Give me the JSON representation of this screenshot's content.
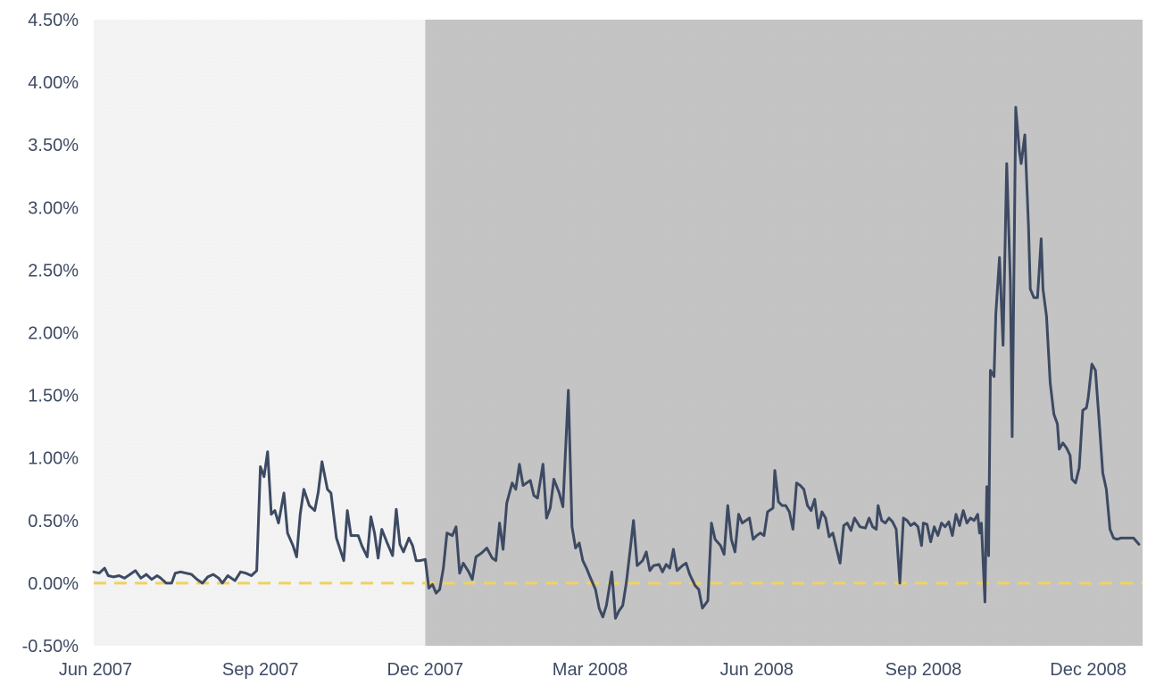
{
  "chart_data": {
    "type": "line",
    "title": "",
    "xlabel": "",
    "ylabel": "",
    "ylim": [
      -0.5,
      4.5
    ],
    "y_unit": "%",
    "y_ticks": [
      "4.50%",
      "4.00%",
      "3.50%",
      "3.00%",
      "2.50%",
      "2.00%",
      "1.50%",
      "1.00%",
      "0.50%",
      "0.00%",
      "-0.50%"
    ],
    "x_ticks": [
      {
        "label": "Jun 2007",
        "date": "2007-06-01"
      },
      {
        "label": "Sep 2007",
        "date": "2007-09-01"
      },
      {
        "label": "Dec 2007",
        "date": "2007-12-01"
      },
      {
        "label": "Mar 2008",
        "date": "2008-03-01"
      },
      {
        "label": "Jun 2008",
        "date": "2008-06-01"
      },
      {
        "label": "Sep 2008",
        "date": "2008-09-01"
      },
      {
        "label": "Dec 2008",
        "date": "2008-12-01"
      }
    ],
    "xlim": [
      "2007-06-01",
      "2008-12-31"
    ],
    "grid": false,
    "legend": "none",
    "shaded_regions": [
      {
        "start": "2007-06-01",
        "end": "2007-12-01",
        "color": "#f0f0f0"
      },
      {
        "start": "2007-12-01",
        "end": "2008-12-31",
        "color": "#c4c4c4"
      }
    ],
    "reference_line": {
      "y": 0.0,
      "style": "dashed",
      "color": "#f2d25c"
    },
    "series": [
      {
        "color": "#3d4a63",
        "points": [
          [
            "2007-06-01",
            0.09
          ],
          [
            "2007-06-04",
            0.08
          ],
          [
            "2007-06-07",
            0.12
          ],
          [
            "2007-06-09",
            0.06
          ],
          [
            "2007-06-12",
            0.05
          ],
          [
            "2007-06-15",
            0.06
          ],
          [
            "2007-06-18",
            0.04
          ],
          [
            "2007-06-21",
            0.07
          ],
          [
            "2007-06-24",
            0.1
          ],
          [
            "2007-06-27",
            0.04
          ],
          [
            "2007-06-30",
            0.07
          ],
          [
            "2007-07-03",
            0.03
          ],
          [
            "2007-07-06",
            0.06
          ],
          [
            "2007-07-08",
            0.04
          ],
          [
            "2007-07-11",
            0.0
          ],
          [
            "2007-07-14",
            0.0
          ],
          [
            "2007-07-16",
            0.08
          ],
          [
            "2007-07-19",
            0.09
          ],
          [
            "2007-07-22",
            0.08
          ],
          [
            "2007-07-25",
            0.07
          ],
          [
            "2007-07-28",
            0.03
          ],
          [
            "2007-07-31",
            0.0
          ],
          [
            "2007-08-03",
            0.05
          ],
          [
            "2007-08-06",
            0.07
          ],
          [
            "2007-08-09",
            0.04
          ],
          [
            "2007-08-11",
            0.0
          ],
          [
            "2007-08-14",
            0.06
          ],
          [
            "2007-08-16",
            0.04
          ],
          [
            "2007-08-18",
            0.02
          ],
          [
            "2007-08-21",
            0.09
          ],
          [
            "2007-08-24",
            0.08
          ],
          [
            "2007-08-27",
            0.06
          ],
          [
            "2007-08-30",
            0.1
          ],
          [
            "2007-09-01",
            0.93
          ],
          [
            "2007-09-03",
            0.85
          ],
          [
            "2007-09-05",
            1.05
          ],
          [
            "2007-09-07",
            0.55
          ],
          [
            "2007-09-09",
            0.58
          ],
          [
            "2007-09-11",
            0.48
          ],
          [
            "2007-09-14",
            0.72
          ],
          [
            "2007-09-16",
            0.4
          ],
          [
            "2007-09-19",
            0.3
          ],
          [
            "2007-09-21",
            0.21
          ],
          [
            "2007-09-23",
            0.55
          ],
          [
            "2007-09-25",
            0.75
          ],
          [
            "2007-09-28",
            0.62
          ],
          [
            "2007-10-01",
            0.58
          ],
          [
            "2007-10-03",
            0.73
          ],
          [
            "2007-10-05",
            0.97
          ],
          [
            "2007-10-08",
            0.75
          ],
          [
            "2007-10-10",
            0.72
          ],
          [
            "2007-10-13",
            0.36
          ],
          [
            "2007-10-15",
            0.27
          ],
          [
            "2007-10-17",
            0.18
          ],
          [
            "2007-10-19",
            0.58
          ],
          [
            "2007-10-21",
            0.38
          ],
          [
            "2007-10-25",
            0.38
          ],
          [
            "2007-10-27",
            0.3
          ],
          [
            "2007-10-30",
            0.21
          ],
          [
            "2007-11-01",
            0.53
          ],
          [
            "2007-11-03",
            0.4
          ],
          [
            "2007-11-05",
            0.2
          ],
          [
            "2007-11-07",
            0.43
          ],
          [
            "2007-11-10",
            0.32
          ],
          [
            "2007-11-13",
            0.22
          ],
          [
            "2007-11-15",
            0.59
          ],
          [
            "2007-11-17",
            0.31
          ],
          [
            "2007-11-19",
            0.25
          ],
          [
            "2007-11-22",
            0.36
          ],
          [
            "2007-11-24",
            0.3
          ],
          [
            "2007-11-26",
            0.18
          ],
          [
            "2007-11-28",
            0.18
          ],
          [
            "2007-12-01",
            0.19
          ],
          [
            "2007-12-03",
            -0.04
          ],
          [
            "2007-12-05",
            -0.01
          ],
          [
            "2007-12-07",
            -0.08
          ],
          [
            "2007-12-09",
            -0.05
          ],
          [
            "2007-12-11",
            0.12
          ],
          [
            "2007-12-13",
            0.4
          ],
          [
            "2007-12-16",
            0.38
          ],
          [
            "2007-12-18",
            0.45
          ],
          [
            "2007-12-20",
            0.08
          ],
          [
            "2007-12-22",
            0.16
          ],
          [
            "2007-12-25",
            0.09
          ],
          [
            "2007-12-27",
            0.03
          ],
          [
            "2007-12-29",
            0.21
          ],
          [
            "2008-01-01",
            0.24
          ],
          [
            "2008-01-04",
            0.28
          ],
          [
            "2008-01-07",
            0.2
          ],
          [
            "2008-01-09",
            0.18
          ],
          [
            "2008-01-11",
            0.48
          ],
          [
            "2008-01-13",
            0.27
          ],
          [
            "2008-01-15",
            0.64
          ],
          [
            "2008-01-18",
            0.8
          ],
          [
            "2008-01-20",
            0.75
          ],
          [
            "2008-01-22",
            0.95
          ],
          [
            "2008-01-24",
            0.78
          ],
          [
            "2008-01-26",
            0.8
          ],
          [
            "2008-01-28",
            0.82
          ],
          [
            "2008-01-30",
            0.7
          ],
          [
            "2008-02-01",
            0.68
          ],
          [
            "2008-02-04",
            0.95
          ],
          [
            "2008-02-06",
            0.52
          ],
          [
            "2008-02-08",
            0.6
          ],
          [
            "2008-02-10",
            0.83
          ],
          [
            "2008-02-13",
            0.72
          ],
          [
            "2008-02-15",
            0.61
          ],
          [
            "2008-02-18",
            1.54
          ],
          [
            "2008-02-20",
            0.45
          ],
          [
            "2008-02-22",
            0.28
          ],
          [
            "2008-02-24",
            0.32
          ],
          [
            "2008-02-26",
            0.18
          ],
          [
            "2008-02-28",
            0.12
          ],
          [
            "2008-03-01",
            0.05
          ],
          [
            "2008-03-04",
            -0.05
          ],
          [
            "2008-03-06",
            -0.2
          ],
          [
            "2008-03-08",
            -0.27
          ],
          [
            "2008-03-10",
            -0.18
          ],
          [
            "2008-03-13",
            0.09
          ],
          [
            "2008-03-15",
            -0.28
          ],
          [
            "2008-03-17",
            -0.22
          ],
          [
            "2008-03-19",
            -0.18
          ],
          [
            "2008-03-21",
            0.0
          ],
          [
            "2008-03-23",
            0.25
          ],
          [
            "2008-03-25",
            0.5
          ],
          [
            "2008-03-27",
            0.14
          ],
          [
            "2008-03-30",
            0.18
          ],
          [
            "2008-04-01",
            0.25
          ],
          [
            "2008-04-03",
            0.1
          ],
          [
            "2008-04-05",
            0.14
          ],
          [
            "2008-04-08",
            0.15
          ],
          [
            "2008-04-10",
            0.09
          ],
          [
            "2008-04-12",
            0.15
          ],
          [
            "2008-04-14",
            0.12
          ],
          [
            "2008-04-16",
            0.27
          ],
          [
            "2008-04-18",
            0.1
          ],
          [
            "2008-04-21",
            0.14
          ],
          [
            "2008-04-23",
            0.16
          ],
          [
            "2008-04-25",
            0.07
          ],
          [
            "2008-04-28",
            -0.02
          ],
          [
            "2008-04-30",
            -0.05
          ],
          [
            "2008-05-02",
            -0.2
          ],
          [
            "2008-05-05",
            -0.14
          ],
          [
            "2008-05-07",
            0.48
          ],
          [
            "2008-05-09",
            0.35
          ],
          [
            "2008-05-12",
            0.3
          ],
          [
            "2008-05-14",
            0.23
          ],
          [
            "2008-05-16",
            0.62
          ],
          [
            "2008-05-18",
            0.35
          ],
          [
            "2008-05-20",
            0.25
          ],
          [
            "2008-05-22",
            0.55
          ],
          [
            "2008-05-24",
            0.48
          ],
          [
            "2008-05-26",
            0.5
          ],
          [
            "2008-05-28",
            0.52
          ],
          [
            "2008-05-30",
            0.35
          ],
          [
            "2008-06-01",
            0.38
          ],
          [
            "2008-06-03",
            0.4
          ],
          [
            "2008-06-05",
            0.38
          ],
          [
            "2008-06-07",
            0.57
          ],
          [
            "2008-06-10",
            0.6
          ],
          [
            "2008-06-11",
            0.9
          ],
          [
            "2008-06-13",
            0.65
          ],
          [
            "2008-06-15",
            0.62
          ],
          [
            "2008-06-17",
            0.62
          ],
          [
            "2008-06-19",
            0.57
          ],
          [
            "2008-06-21",
            0.43
          ],
          [
            "2008-06-23",
            0.8
          ],
          [
            "2008-06-25",
            0.78
          ],
          [
            "2008-06-27",
            0.75
          ],
          [
            "2008-06-29",
            0.62
          ],
          [
            "2008-07-01",
            0.58
          ],
          [
            "2008-07-03",
            0.67
          ],
          [
            "2008-07-05",
            0.44
          ],
          [
            "2008-07-07",
            0.57
          ],
          [
            "2008-07-09",
            0.52
          ],
          [
            "2008-07-11",
            0.37
          ],
          [
            "2008-07-13",
            0.4
          ],
          [
            "2008-07-15",
            0.28
          ],
          [
            "2008-07-17",
            0.16
          ],
          [
            "2008-07-19",
            0.46
          ],
          [
            "2008-07-21",
            0.48
          ],
          [
            "2008-07-23",
            0.42
          ],
          [
            "2008-07-25",
            0.52
          ],
          [
            "2008-07-28",
            0.45
          ],
          [
            "2008-07-31",
            0.44
          ],
          [
            "2008-08-02",
            0.52
          ],
          [
            "2008-08-04",
            0.45
          ],
          [
            "2008-08-06",
            0.43
          ],
          [
            "2008-08-07",
            0.62
          ],
          [
            "2008-08-09",
            0.5
          ],
          [
            "2008-08-11",
            0.48
          ],
          [
            "2008-08-13",
            0.52
          ],
          [
            "2008-08-15",
            0.49
          ],
          [
            "2008-08-17",
            0.43
          ],
          [
            "2008-08-19",
            0.0
          ],
          [
            "2008-08-21",
            0.52
          ],
          [
            "2008-08-23",
            0.5
          ],
          [
            "2008-08-25",
            0.46
          ],
          [
            "2008-08-27",
            0.48
          ],
          [
            "2008-08-29",
            0.45
          ],
          [
            "2008-08-31",
            0.3
          ],
          [
            "2008-09-01",
            0.48
          ],
          [
            "2008-09-03",
            0.47
          ],
          [
            "2008-09-05",
            0.33
          ],
          [
            "2008-09-07",
            0.45
          ],
          [
            "2008-09-09",
            0.38
          ],
          [
            "2008-09-11",
            0.48
          ],
          [
            "2008-09-13",
            0.45
          ],
          [
            "2008-09-15",
            0.49
          ],
          [
            "2008-09-17",
            0.38
          ],
          [
            "2008-09-19",
            0.55
          ],
          [
            "2008-09-21",
            0.46
          ],
          [
            "2008-09-23",
            0.58
          ],
          [
            "2008-09-25",
            0.48
          ],
          [
            "2008-09-27",
            0.52
          ],
          [
            "2008-09-29",
            0.5
          ],
          [
            "2008-10-01",
            0.55
          ],
          [
            "2008-10-02",
            0.4
          ],
          [
            "2008-10-03",
            0.48
          ],
          [
            "2008-10-05",
            -0.15
          ],
          [
            "2008-10-06",
            0.77
          ],
          [
            "2008-10-07",
            0.22
          ],
          [
            "2008-10-08",
            1.7
          ],
          [
            "2008-10-10",
            1.65
          ],
          [
            "2008-10-11",
            2.15
          ],
          [
            "2008-10-13",
            2.6
          ],
          [
            "2008-10-15",
            1.9
          ],
          [
            "2008-10-17",
            3.35
          ],
          [
            "2008-10-19",
            2.4
          ],
          [
            "2008-10-20",
            1.17
          ],
          [
            "2008-10-22",
            3.8
          ],
          [
            "2008-10-24",
            3.45
          ],
          [
            "2008-10-25",
            3.35
          ],
          [
            "2008-10-27",
            3.58
          ],
          [
            "2008-10-29",
            2.85
          ],
          [
            "2008-10-30",
            2.35
          ],
          [
            "2008-11-01",
            2.28
          ],
          [
            "2008-11-03",
            2.28
          ],
          [
            "2008-11-05",
            2.75
          ],
          [
            "2008-11-06",
            2.35
          ],
          [
            "2008-11-08",
            2.13
          ],
          [
            "2008-11-10",
            1.6
          ],
          [
            "2008-11-12",
            1.35
          ],
          [
            "2008-11-14",
            1.27
          ],
          [
            "2008-11-15",
            1.07
          ],
          [
            "2008-11-17",
            1.12
          ],
          [
            "2008-11-19",
            1.08
          ],
          [
            "2008-11-21",
            1.02
          ],
          [
            "2008-11-22",
            0.83
          ],
          [
            "2008-11-24",
            0.8
          ],
          [
            "2008-11-26",
            0.92
          ],
          [
            "2008-11-28",
            1.38
          ],
          [
            "2008-11-30",
            1.4
          ],
          [
            "2008-12-01",
            1.48
          ],
          [
            "2008-12-03",
            1.75
          ],
          [
            "2008-12-05",
            1.7
          ],
          [
            "2008-12-07",
            1.3
          ],
          [
            "2008-12-09",
            0.88
          ],
          [
            "2008-12-11",
            0.75
          ],
          [
            "2008-12-13",
            0.43
          ],
          [
            "2008-12-15",
            0.36
          ],
          [
            "2008-12-17",
            0.35
          ],
          [
            "2008-12-19",
            0.36
          ],
          [
            "2008-12-21",
            0.36
          ],
          [
            "2008-12-23",
            0.36
          ],
          [
            "2008-12-26",
            0.36
          ],
          [
            "2008-12-29",
            0.31
          ]
        ]
      }
    ]
  }
}
